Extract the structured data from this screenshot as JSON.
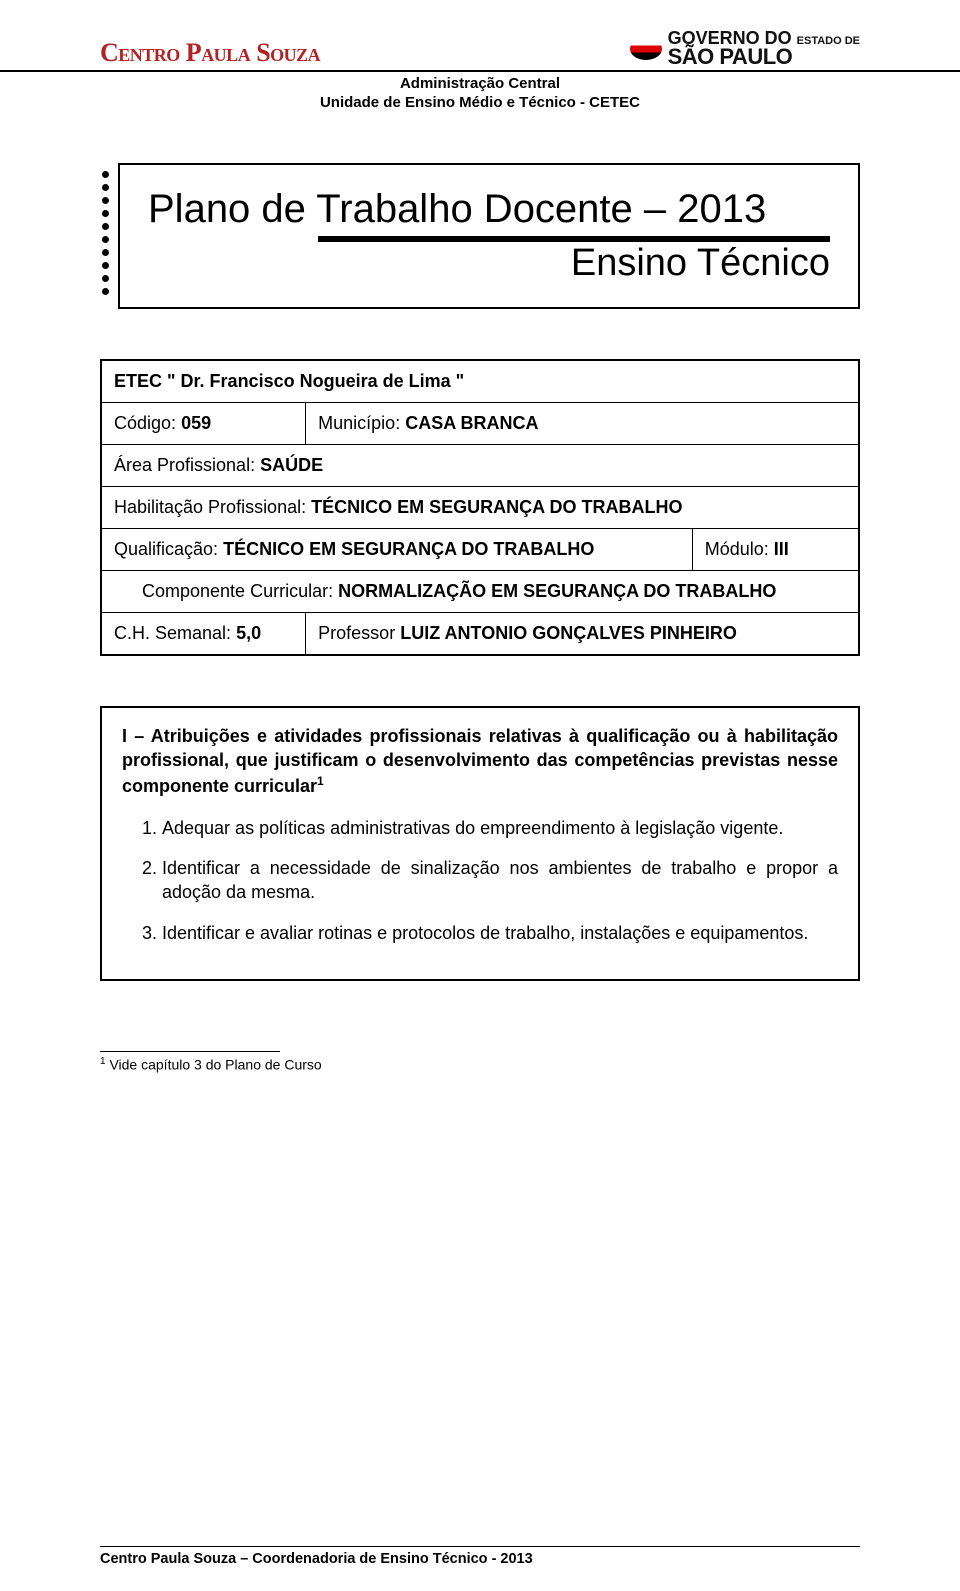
{
  "header": {
    "logo_left": "Centro Paula Souza",
    "gov_line1": "GOVERNO DO",
    "gov_line2": "ESTADO DE",
    "gov_line3": "SÃO PAULO",
    "admin_line1": "Administração Central",
    "admin_line2": "Unidade de Ensino Médio e Técnico - CETEC"
  },
  "title_box": {
    "main": "Plano de Trabalho Docente – 2013",
    "sub": "Ensino Técnico",
    "dot_count": 10
  },
  "info": {
    "etec": "ETEC \" Dr. Francisco Nogueira de Lima \"",
    "codigo_label": "Código:",
    "codigo_value": "059",
    "municipio_label": "Município:",
    "municipio_value": "CASA BRANCA",
    "area_label": "Área Profissional:",
    "area_value": "SAÚDE",
    "hab_label": "Habilitação Profissional:",
    "hab_value": "TÉCNICO EM SEGURANÇA DO TRABALHO",
    "qual_label": "Qualificação:",
    "qual_value": "TÉCNICO EM SEGURANÇA DO TRABALHO",
    "modulo_label": "Módulo:",
    "modulo_value": "III",
    "comp_label": "Componente Curricular:",
    "comp_value": "NORMALIZAÇÃO EM SEGURANÇA DO TRABALHO",
    "ch_label": "C.H. Semanal:",
    "ch_value": "5,0",
    "prof_label": "Professor",
    "prof_value": "LUIZ ANTONIO GONÇALVES PINHEIRO"
  },
  "section": {
    "heading": "I – Atribuições e atividades profissionais relativas à qualificação ou à habilitação profissional, que justificam o desenvolvimento das competências previstas nesse componente curricular",
    "sup": "1",
    "items": [
      "Adequar as políticas administrativas do empreendimento à legislação vigente.",
      "Identificar a necessidade de sinalização nos ambientes de trabalho e propor a adoção da mesma.",
      "Identificar e avaliar rotinas e protocolos de trabalho, instalações e equipamentos."
    ]
  },
  "footnote": {
    "ref": "1",
    "text": "Vide capítulo 3 do Plano de Curso"
  },
  "footer": {
    "text": "Centro Paula Souza – Coordenadoria de Ensino Técnico - 2013"
  },
  "colors": {
    "logo_red": "#b22222",
    "text": "#000000",
    "background": "#ffffff"
  }
}
